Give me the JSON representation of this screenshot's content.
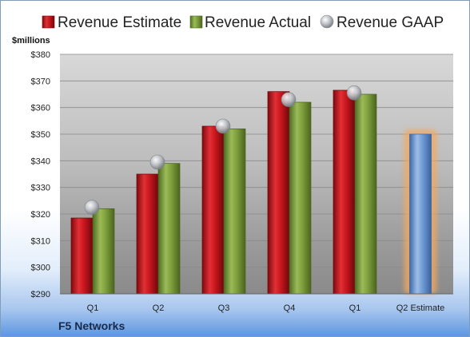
{
  "chart_data": {
    "type": "bar",
    "unit_label": "$millions",
    "categories": [
      "Q1",
      "Q2",
      "Q3",
      "Q4",
      "Q1",
      "Q2 Estimate"
    ],
    "ylim": [
      290,
      380
    ],
    "yticks": [
      "$290",
      "$300",
      "$310",
      "$320",
      "$330",
      "$340",
      "$350",
      "$360",
      "$370",
      "$380"
    ],
    "grid": true,
    "legend_position": "top",
    "series": [
      {
        "name": "Revenue Estimate",
        "type": "bar",
        "color": "#c8161d",
        "values": [
          318.5,
          335,
          353,
          366,
          366.5,
          null
        ]
      },
      {
        "name": "Revenue Actual",
        "type": "bar",
        "color": "#7f9f3c",
        "values": [
          322,
          339,
          352,
          362,
          365,
          null
        ]
      },
      {
        "name": "Revenue GAAP",
        "type": "marker",
        "color": "#b8bcc2",
        "values": [
          322.5,
          339.5,
          353,
          363,
          365.5,
          null
        ]
      },
      {
        "name": "Q2 Estimate",
        "type": "bar",
        "color": "#6f9bd6",
        "highlight": "#f2a860",
        "values": [
          null,
          null,
          null,
          null,
          null,
          350
        ]
      }
    ]
  },
  "footer": {
    "company": "F5 Networks"
  }
}
